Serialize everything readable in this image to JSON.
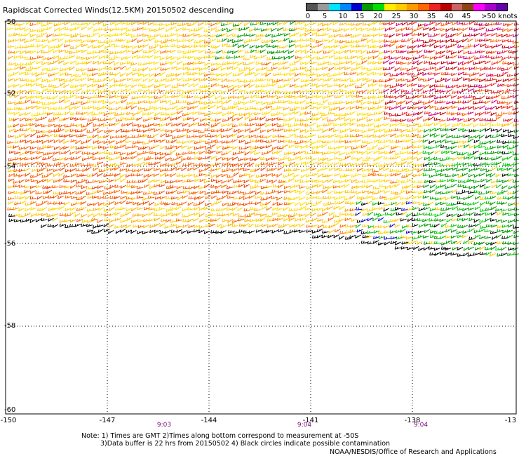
{
  "title": "Rapidscat Corrected Winds(12.5KM) 20150502 descending",
  "legend": {
    "colors": [
      "#555555",
      "#9a9a9a",
      "#00e5ff",
      "#0088ff",
      "#0000cc",
      "#009900",
      "#00dd00",
      "#ffee00",
      "#ffcc00",
      "#ff9900",
      "#ff6600",
      "#ee2222",
      "#bb0000",
      "#c86464",
      "#8b4513",
      "#ff00ff",
      "#aa00cc",
      "#6600aa"
    ],
    "labels": [
      "0",
      "5",
      "10",
      "15",
      "20",
      "25",
      "30",
      "35",
      "40",
      "45",
      ">50 knots"
    ]
  },
  "map": {
    "lon_range": [
      -150,
      -135
    ],
    "lat_range": [
      -50,
      -60
    ],
    "lat_labels": [
      "-50",
      "-52",
      "-54",
      "-56",
      "-58",
      "-60"
    ],
    "lon_labels": [
      "-150",
      "-147",
      "-144",
      "-141",
      "-138",
      "-13"
    ],
    "time_labels": [
      "9:03",
      "9:04",
      "9:04"
    ],
    "grid": true,
    "data_region": "wind barbs cover roughly -50 to -56 latitude; southern edge curves from -55.5 near -150 to -56.5 near -135"
  },
  "notes": [
    "Note: 1) Times are GMT 2)Times along bottom correspond to measurement at -50S",
    "3)Data buffer is 22 hrs from 20150502 4) Black circles indicate possible contamination"
  ],
  "credit": "NOAA/NESDIS/Office of Research and Applications"
}
